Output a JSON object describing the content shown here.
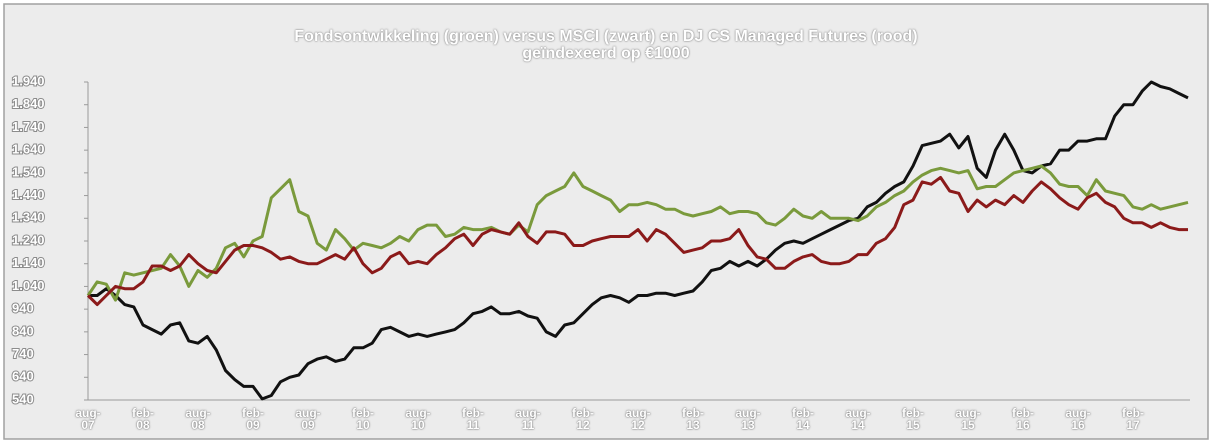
{
  "chart_data": {
    "type": "line",
    "title": "Fondsontwikkeling (groen) versus MSCI (zwart) en DJ CS Managed Futures (rood) geïndexeerd op €1000",
    "categories": [
      "aug-07",
      null,
      null,
      null,
      null,
      null,
      "feb-08",
      null,
      null,
      null,
      null,
      null,
      "aug-08",
      null,
      null,
      null,
      null,
      null,
      "feb-09",
      null,
      null,
      null,
      null,
      null,
      "aug-09",
      null,
      null,
      null,
      null,
      null,
      "feb-10",
      null,
      null,
      null,
      null,
      null,
      "aug-10",
      null,
      null,
      null,
      null,
      null,
      "feb-11",
      null,
      null,
      null,
      null,
      null,
      "aug-11",
      null,
      null,
      null,
      null,
      null,
      "feb-12",
      null,
      null,
      null,
      null,
      null,
      "aug-12",
      null,
      null,
      null,
      null,
      null,
      "feb-13",
      null,
      null,
      null,
      null,
      null,
      "aug-13",
      null,
      null,
      null,
      null,
      null,
      "feb-14",
      null,
      null,
      null,
      null,
      null,
      "aug-14",
      null,
      null,
      null,
      null,
      null,
      "feb-15",
      null,
      null,
      null,
      null,
      null,
      "aug-15",
      null,
      null,
      null,
      null,
      null,
      "feb-16",
      null,
      null,
      null,
      null,
      null,
      "aug-16",
      null,
      null,
      null,
      null,
      null,
      "feb-17",
      null,
      null,
      null,
      null,
      null,
      null
    ],
    "series": [
      {
        "color": "#111111",
        "values": [
          1000,
          1000,
          1030,
          1000,
          960,
          950,
          870,
          850,
          830,
          870,
          880,
          800,
          790,
          820,
          760,
          670,
          630,
          600,
          600,
          545,
          560,
          620,
          640,
          650,
          700,
          720,
          730,
          710,
          720,
          770,
          770,
          790,
          850,
          860,
          840,
          820,
          830,
          820,
          830,
          840,
          850,
          880,
          920,
          930,
          950,
          920,
          920,
          930,
          910,
          900,
          840,
          820,
          870,
          880,
          920,
          960,
          990,
          1000,
          990,
          970,
          1000,
          1000,
          1010,
          1010,
          1000,
          1010,
          1020,
          1060,
          1110,
          1120,
          1150,
          1130,
          1150,
          1130,
          1160,
          1200,
          1230,
          1240,
          1230,
          1250,
          1270,
          1290,
          1310,
          1330,
          1340,
          1390,
          1410,
          1450,
          1480,
          1500,
          1570,
          1660,
          1670,
          1680,
          1710,
          1650,
          1700,
          1560,
          1520,
          1640,
          1710,
          1640,
          1550,
          1540,
          1570,
          1580,
          1640,
          1640,
          1680,
          1680,
          1690,
          1690,
          1790,
          1840,
          1840,
          1900,
          1940,
          1920,
          1910,
          1890,
          1870
        ]
      },
      {
        "color": "#7a9a3c",
        "values": [
          1000,
          1060,
          1050,
          980,
          1100,
          1090,
          1100,
          1110,
          1120,
          1180,
          1130,
          1040,
          1110,
          1080,
          1120,
          1210,
          1230,
          1170,
          1240,
          1260,
          1430,
          1470,
          1510,
          1370,
          1350,
          1230,
          1200,
          1290,
          1250,
          1200,
          1230,
          1220,
          1210,
          1230,
          1260,
          1240,
          1290,
          1310,
          1310,
          1260,
          1270,
          1300,
          1290,
          1290,
          1300,
          1280,
          1270,
          1310,
          1280,
          1400,
          1440,
          1460,
          1480,
          1540,
          1480,
          1460,
          1440,
          1420,
          1370,
          1400,
          1400,
          1410,
          1400,
          1380,
          1380,
          1360,
          1350,
          1360,
          1370,
          1390,
          1360,
          1370,
          1370,
          1360,
          1320,
          1310,
          1340,
          1380,
          1350,
          1340,
          1370,
          1340,
          1340,
          1340,
          1330,
          1350,
          1390,
          1410,
          1440,
          1460,
          1500,
          1530,
          1550,
          1560,
          1550,
          1540,
          1550,
          1470,
          1480,
          1480,
          1510,
          1540,
          1550,
          1560,
          1570,
          1540,
          1490,
          1480,
          1480,
          1440,
          1510,
          1460,
          1450,
          1440,
          1390,
          1380,
          1400,
          1380,
          1390,
          1400,
          1410
        ]
      },
      {
        "color": "#8b1a1a",
        "values": [
          1000,
          960,
          1000,
          1040,
          1030,
          1030,
          1060,
          1130,
          1130,
          1110,
          1130,
          1180,
          1140,
          1110,
          1100,
          1150,
          1200,
          1220,
          1220,
          1210,
          1190,
          1160,
          1170,
          1150,
          1140,
          1140,
          1160,
          1180,
          1160,
          1210,
          1140,
          1100,
          1120,
          1170,
          1190,
          1140,
          1150,
          1140,
          1180,
          1210,
          1250,
          1270,
          1220,
          1270,
          1290,
          1280,
          1270,
          1320,
          1260,
          1230,
          1280,
          1280,
          1270,
          1220,
          1220,
          1240,
          1250,
          1260,
          1260,
          1260,
          1290,
          1240,
          1290,
          1270,
          1230,
          1190,
          1200,
          1210,
          1240,
          1240,
          1250,
          1290,
          1220,
          1170,
          1160,
          1120,
          1120,
          1150,
          1170,
          1180,
          1150,
          1140,
          1140,
          1150,
          1180,
          1180,
          1230,
          1250,
          1300,
          1400,
          1420,
          1500,
          1490,
          1520,
          1460,
          1450,
          1370,
          1420,
          1390,
          1420,
          1400,
          1440,
          1410,
          1460,
          1500,
          1470,
          1430,
          1400,
          1380,
          1430,
          1450,
          1410,
          1390,
          1340,
          1320,
          1320,
          1300,
          1320,
          1300,
          1290,
          1290
        ]
      }
    ],
    "ylim": [
      540,
      1940
    ],
    "yticks": [
      540,
      640,
      740,
      840,
      940,
      {
        "value": 1040,
        "label": "1.040"
      },
      {
        "value": 1140,
        "label": "1.140"
      },
      {
        "value": 1240,
        "label": "1.240"
      },
      {
        "value": 1340,
        "label": "1.340"
      },
      {
        "value": 1440,
        "label": "1.440"
      },
      {
        "value": 1540,
        "label": "1.540"
      },
      {
        "value": 1640,
        "label": "1.640"
      },
      {
        "value": 1740,
        "label": "1.740"
      },
      {
        "value": 1840,
        "label": "1.840"
      },
      {
        "value": 1940,
        "label": "1.940"
      }
    ],
    "grid": false
  }
}
